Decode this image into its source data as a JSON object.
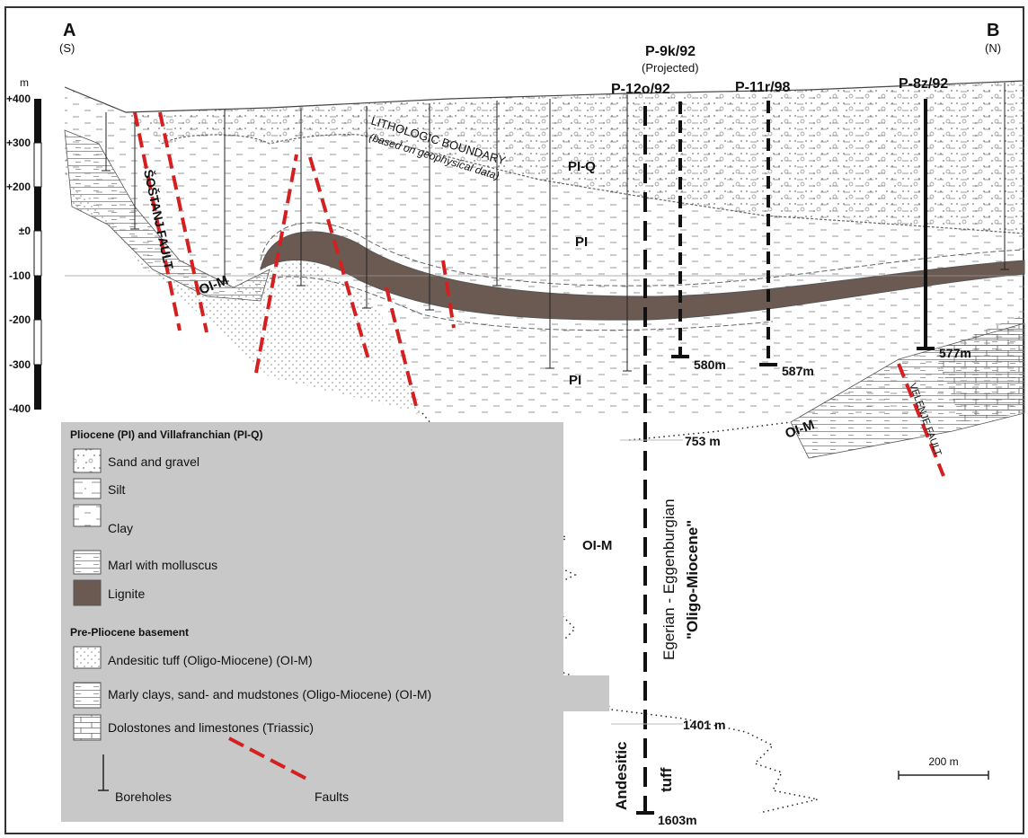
{
  "section": {
    "start": {
      "label": "A",
      "direction": "(S)"
    },
    "end": {
      "label": "B",
      "direction": "(N)"
    }
  },
  "depth_scale": {
    "unit": "m",
    "labels": [
      "+400",
      "+300",
      "+200",
      "±0",
      "-100",
      "-200",
      "-300",
      "-400"
    ]
  },
  "boreholes": [
    {
      "name": "P-9k/92",
      "note": "(Projected)",
      "depth": "580m"
    },
    {
      "name": "P-12o/92",
      "depth": "1603m"
    },
    {
      "name": "P-11r/98",
      "depth": "587m"
    },
    {
      "name": "P-8z/92",
      "depth": "577m"
    }
  ],
  "depth_marks": [
    "753 m",
    "1401 m"
  ],
  "unit_labels": [
    "PI-Q",
    "PI",
    "PI",
    "OI-M",
    "OI-M",
    "OI-M"
  ],
  "annotations": {
    "boundary": "LITHOLOGIC BOUNDARY",
    "boundary_note": "(based on geophysical data)",
    "fault_south": "ŠOŠTANJ FAULT",
    "fault_north": "VELENJE FAULT",
    "age": "Egerian - Eggenburgian",
    "age_note": "\"Oligo-Miocene\"",
    "rock_1": "Andesitic",
    "rock_2": "tuff"
  },
  "legend": {
    "group_1": "Pliocene (PI) and Villafranchian (PI-Q)",
    "items_1": [
      "Sand and gravel",
      "Silt",
      "Clay",
      "Marl with molluscus",
      "Lignite"
    ],
    "group_2": "Pre-Pliocene basement",
    "items_2": [
      "Andesitic tuff (Oligo-Miocene) (OI-M)",
      "Marly clays, sand- and mudstones (Oligo-Miocene) (OI-M)",
      "Dolostones and limestones (Triassic)"
    ],
    "boreholes": "Boreholes",
    "faults": "Faults"
  },
  "scale_bar": "200 m"
}
